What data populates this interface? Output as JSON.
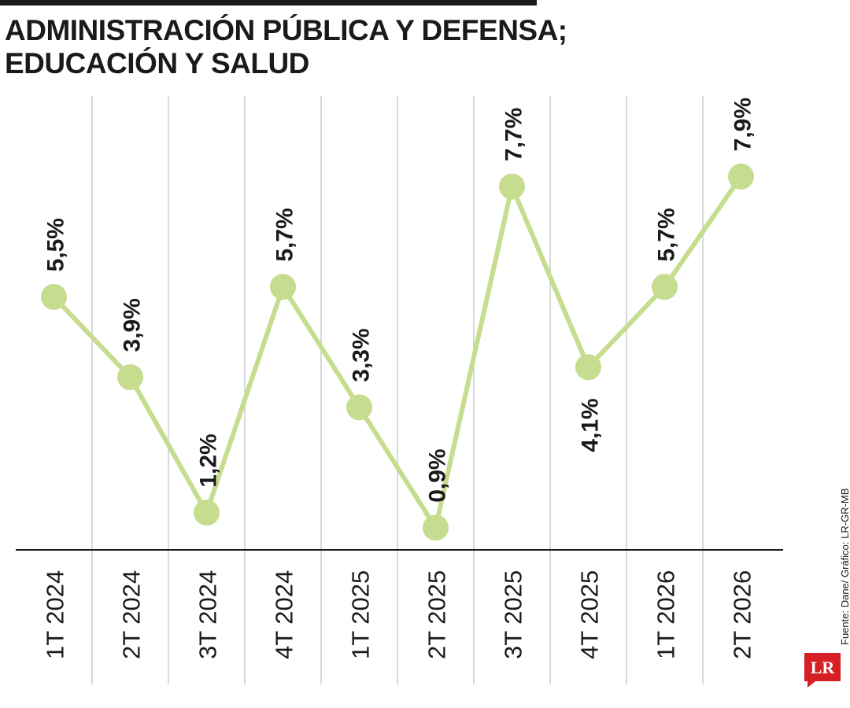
{
  "title_line1": "ADMINISTRACIÓN PÚBLICA Y DEFENSA;",
  "title_line2": "EDUCACIÓN Y SALUD",
  "source": "Fuente: Dane/ Gráfico: LR-GR-MB",
  "logo_text": "LR",
  "colors": {
    "line": "#c6dc8e",
    "grid": "#bdbdbd",
    "axis": "#1a1a1a",
    "text": "#1a1a1a",
    "logo": "#d71f26"
  },
  "chart_data": {
    "type": "line",
    "title": "ADMINISTRACIÓN PÚBLICA Y DEFENSA; EDUCACIÓN Y SALUD",
    "categories": [
      "1T 2024",
      "2T 2024",
      "3T 2024",
      "4T 2024",
      "1T 2025",
      "2T 2025",
      "3T 2025",
      "4T 2025",
      "1T 2026",
      "2T 2026"
    ],
    "values": [
      5.5,
      3.9,
      1.2,
      5.7,
      3.3,
      0.9,
      7.7,
      4.1,
      5.7,
      7.9
    ],
    "labels": [
      "5,5%",
      "3,9%",
      "1,2%",
      "5,7%",
      "3,3%",
      "0,9%",
      "7,7%",
      "4,1%",
      "5,7%",
      "7,9%"
    ],
    "xlabel": "",
    "ylabel": "",
    "grid": true,
    "legend": "none"
  }
}
